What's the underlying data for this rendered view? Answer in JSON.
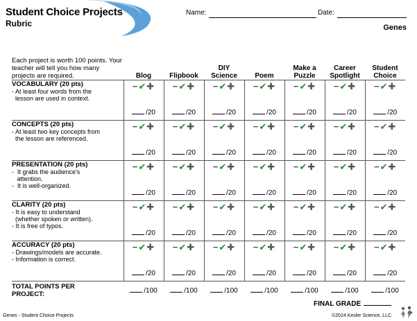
{
  "header": {
    "title": "Student Choice Projects",
    "subtitle": "Rubric",
    "name_label": "Name:",
    "date_label": "Date:",
    "topic": "Genes"
  },
  "intro": "Each project is worth 100 points. Your teacher will tell you how many projects are required.",
  "projects": [
    [
      "Blog"
    ],
    [
      "Flipbook"
    ],
    [
      "DIY",
      "Science"
    ],
    [
      "Poem"
    ],
    [
      "Make a",
      "Puzzle"
    ],
    [
      "Career",
      "Spotlight"
    ],
    [
      "Student",
      "Choice"
    ]
  ],
  "criteria": [
    {
      "name": "VOCABULARY (20 pts)",
      "desc": [
        "- At least four words from the",
        "  lesson are used in context."
      ]
    },
    {
      "name": "CONCEPTS (20 pts)",
      "desc": [
        "- At least two key concepts from",
        "  the lesson are referenced."
      ]
    },
    {
      "name": "PRESENTATION (20 pts)",
      "desc": [
        "-  It grabs the audience's",
        "   attention.",
        "-  It is well-organized."
      ]
    },
    {
      "name": "CLARITY (20 pts)",
      "desc": [
        "- It is easy to understand",
        "  (whether spoken or written).",
        "- It is free of typos."
      ]
    },
    {
      "name": "ACCURACY (20 pts)",
      "desc": [
        "- Drawings/models are accurate.",
        "- Information is correct."
      ]
    }
  ],
  "marks": {
    "minus": "−",
    "check": "✔",
    "plus": "✚"
  },
  "criterion_score": "/20",
  "total": {
    "label_line1": "TOTAL POINTS PER",
    "label_line2": "PROJECT:",
    "score": "/100"
  },
  "final_grade_label": "FINAL GRADE",
  "footer": {
    "left": "Genes - Student Choice Projects",
    "right": "©2024  Kesler Science, LLC"
  },
  "colors": {
    "check": "#2e8b2e",
    "swoosh": "#3f8fd2"
  }
}
